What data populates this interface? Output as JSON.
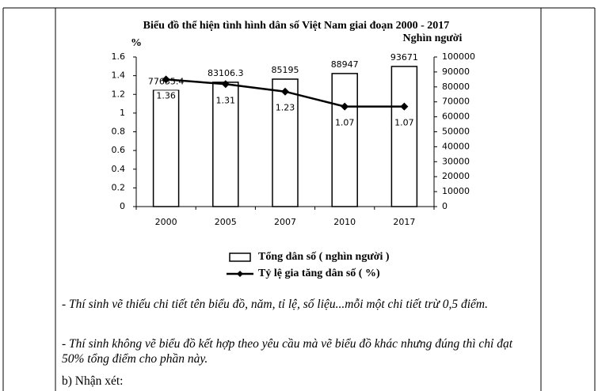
{
  "chart_data": {
    "type": "combo",
    "title": "Biểu đồ thể hiện tình hình dân số Việt Nam giai đoạn 2000 - 2017",
    "y_label": "%",
    "y2_label": "Nghìn người",
    "categories": [
      "2000",
      "2005",
      "2007",
      "2010",
      "2017"
    ],
    "series": [
      {
        "name": "Tổng dân số ( nghìn người )",
        "type": "bar",
        "axis": "y2",
        "color": "#ffffff",
        "values": [
          77635.4,
          83106.3,
          85195,
          88947,
          93671
        ]
      },
      {
        "name": "Tỷ lệ gia tăng dân số ( %)",
        "type": "line",
        "axis": "y",
        "color": "#000000",
        "values": [
          1.36,
          1.31,
          1.23,
          1.07,
          1.07
        ]
      }
    ],
    "ylim": [
      0,
      1.6
    ],
    "yticks": [
      0,
      0.2,
      0.4,
      0.6,
      0.8,
      1,
      1.2,
      1.4,
      1.6
    ],
    "y2lim": [
      0,
      100000
    ],
    "y2ticks": [
      0,
      10000,
      20000,
      30000,
      40000,
      50000,
      60000,
      70000,
      80000,
      90000,
      100000
    ],
    "grid": false,
    "legend": "bottom"
  },
  "notes": [
    "- Thí sinh vẽ thiếu chi tiết tên biểu đồ, năm, tỉ lệ, số liệu...mỗi một chi tiết trừ 0,5 điểm.",
    "- Thí sinh không vẽ biểu đồ kết hợp theo yêu cầu mà vẽ biểu đồ khác nhưng đúng thì chỉ đạt 50% tổng điểm cho phần này."
  ],
  "section": "b) Nhận xét:"
}
